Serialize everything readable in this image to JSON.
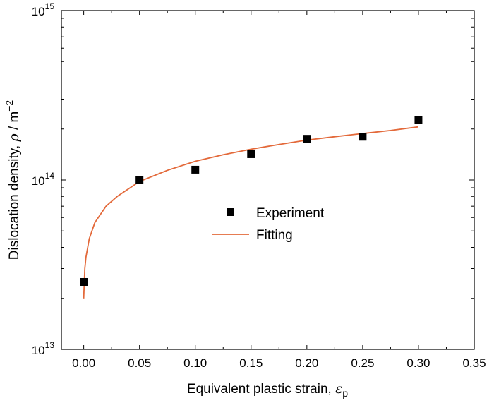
{
  "chart_data": {
    "type": "scatter",
    "xlabel": "Equivalent plastic strain, ",
    "xlabel_symbol": "ε",
    "xlabel_subscript": "p",
    "ylabel": "Dislocation density, ",
    "ylabel_symbol": "ρ",
    "ylabel_unit": " / m",
    "ylabel_exponent": "−2",
    "xlim": [
      -0.02,
      0.35
    ],
    "ylim": [
      10000000000000.0,
      1000000000000000.0
    ],
    "yscale": "log",
    "grid": false,
    "legend_position": "center",
    "x_ticks": [
      "0.00",
      "0.05",
      "0.10",
      "0.15",
      "0.20",
      "0.25",
      "0.30",
      "0.35"
    ],
    "x_tick_values": [
      0,
      0.05,
      0.1,
      0.15,
      0.2,
      0.25,
      0.3,
      0.35
    ],
    "y_ticks": [
      {
        "value": 10000000000000.0,
        "base": "10",
        "exp": "13"
      },
      {
        "value": 100000000000000.0,
        "base": "10",
        "exp": "14"
      },
      {
        "value": 1000000000000000.0,
        "base": "10",
        "exp": "15"
      }
    ],
    "series": [
      {
        "name": "Experiment",
        "kind": "marker",
        "color": "#000000",
        "x": [
          0.0,
          0.05,
          0.1,
          0.15,
          0.2,
          0.25,
          0.3
        ],
        "y": [
          25000000000000.0,
          100000000000000.0,
          115000000000000.0,
          142000000000000.0,
          175000000000000.0,
          180000000000000.0,
          225000000000000.0
        ]
      },
      {
        "name": "Fitting",
        "kind": "line",
        "color": "#e3693a",
        "x": [
          0.0,
          0.001,
          0.002,
          0.005,
          0.01,
          0.02,
          0.03,
          0.05,
          0.075,
          0.1,
          0.125,
          0.15,
          0.175,
          0.2,
          0.225,
          0.25,
          0.275,
          0.3
        ],
        "y": [
          20000000000000.0,
          30000000000000.0,
          35000000000000.0,
          45000000000000.0,
          56000000000000.0,
          70000000000000.0,
          80000000000000.0,
          98000000000000.0,
          114000000000000.0,
          129000000000000.0,
          141000000000000.0,
          152000000000000.0,
          162000000000000.0,
          172000000000000.0,
          180000000000000.0,
          188000000000000.0,
          196000000000000.0,
          206000000000000.0
        ]
      }
    ]
  }
}
